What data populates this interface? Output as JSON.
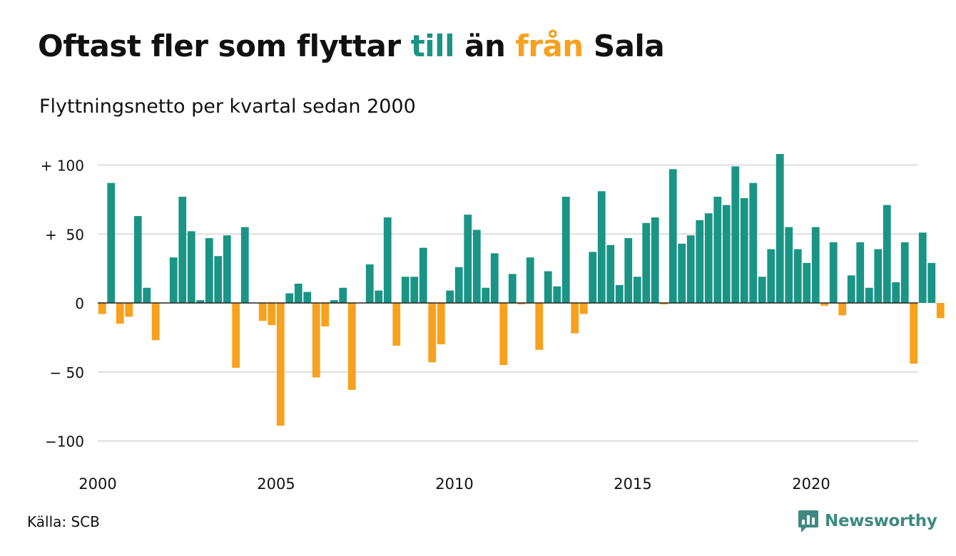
{
  "title": {
    "part1": "Oftast fler som flyttar ",
    "part2": "till",
    "part3": " än ",
    "part4": "från",
    "part5": " Sala"
  },
  "subtitle": "Flyttningsnetto per kvartal sedan 2000",
  "source": "Källa: SCB",
  "logo": {
    "text": "Newsworthy",
    "icon": "chart-bubble-icon"
  },
  "colors": {
    "positive": "#1a9485",
    "negative": "#f7a11e",
    "grid": "#dddddd",
    "axis": "#222222"
  },
  "chart_data": {
    "type": "bar",
    "title": "Oftast fler som flyttar till än från Sala",
    "subtitle": "Flyttningsnetto per kvartal sedan 2000",
    "xlabel": "",
    "ylabel": "",
    "x_start_year": 2000,
    "periods_per_year": 4,
    "x_tick_labels": [
      "2000",
      "2005",
      "2010",
      "2015",
      "2020"
    ],
    "ylim": [
      -110,
      110
    ],
    "y_ticks": [
      100,
      50,
      0,
      -50,
      -100
    ],
    "y_tick_labels": [
      "+ 100",
      "+  50",
      "0",
      "− 50",
      "−100"
    ],
    "grid": true,
    "legend": "none",
    "values": [
      -8,
      87,
      -15,
      -10,
      63,
      11,
      -27,
      0,
      33,
      77,
      52,
      2,
      47,
      34,
      49,
      -47,
      55,
      0,
      -13,
      -16,
      -89,
      7,
      14,
      8,
      -54,
      -17,
      2,
      11,
      -63,
      0,
      28,
      9,
      62,
      -31,
      19,
      19,
      40,
      -43,
      -30,
      9,
      26,
      64,
      53,
      11,
      36,
      -45,
      21,
      -1,
      33,
      -34,
      23,
      12,
      77,
      -22,
      -8,
      37,
      81,
      42,
      13,
      47,
      19,
      58,
      62,
      -1,
      97,
      43,
      49,
      60,
      65,
      77,
      71,
      99,
      76,
      87,
      19,
      39,
      108,
      55,
      39,
      29,
      55,
      -2,
      44,
      -9,
      20,
      44,
      11,
      39,
      71,
      15,
      44,
      -44,
      51,
      29,
      -11
    ]
  }
}
